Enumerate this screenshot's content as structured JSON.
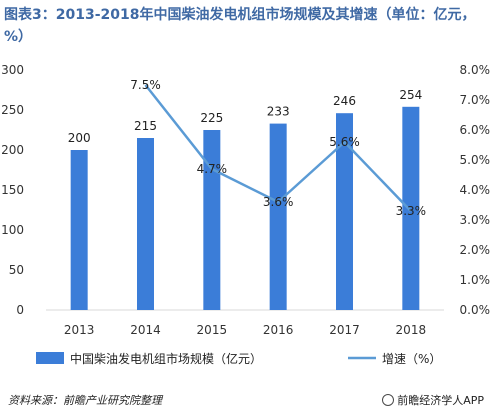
{
  "header": {
    "title": "图表3：2013-2018年中国柴油发电机组市场规模及其增速（单位：亿元，%）"
  },
  "footer": {
    "source": "资料来源：前瞻产业研究院整理",
    "brand": "前瞻经济学人APP"
  },
  "colors": {
    "bar": "#3b7dd8",
    "line": "#5b9bd5",
    "title": "#3f69a4",
    "grid": "#d9d9d9"
  },
  "chart_data": {
    "type": "bar",
    "categories": [
      "2013",
      "2014",
      "2015",
      "2016",
      "2017",
      "2018"
    ],
    "series": [
      {
        "name": "中国柴油发电机组市场规模（亿元）",
        "type": "bar",
        "axis": "left",
        "values": [
          200,
          215,
          225,
          233,
          246,
          254
        ],
        "labels": [
          "200",
          "215",
          "225",
          "233",
          "246",
          "254"
        ]
      },
      {
        "name": "增速（%）",
        "type": "line",
        "axis": "right",
        "values": [
          null,
          7.5,
          4.7,
          3.6,
          5.6,
          3.3
        ],
        "labels": [
          "",
          "7.5%",
          "4.7%",
          "3.6%",
          "5.6%",
          "3.3%"
        ]
      }
    ],
    "y_left": {
      "min": 0,
      "max": 300,
      "ticks": [
        "0",
        "50",
        "100",
        "150",
        "200",
        "250",
        "300"
      ]
    },
    "y_right": {
      "min": 0,
      "max": 8,
      "ticks": [
        "0.0%",
        "1.0%",
        "2.0%",
        "3.0%",
        "4.0%",
        "5.0%",
        "6.0%",
        "7.0%",
        "8.0%"
      ]
    },
    "grid": false,
    "legend_position": "bottom"
  }
}
